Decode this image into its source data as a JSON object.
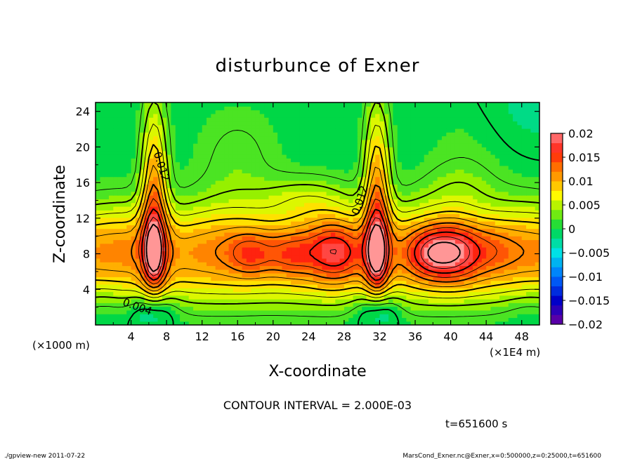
{
  "chart_data": {
    "type": "heatmap",
    "title": "disturbunce of Exner",
    "xlabel": "X-coordinate",
    "ylabel": "Z-coordinate",
    "x_unit_note": "(×1E4 m)",
    "y_unit_note": "(×1000 m)",
    "xlim": [
      0,
      50
    ],
    "ylim": [
      0,
      25
    ],
    "x_ticks": [
      4,
      8,
      12,
      16,
      20,
      24,
      28,
      32,
      36,
      40,
      44,
      48
    ],
    "y_ticks": [
      4,
      8,
      12,
      16,
      20,
      24
    ],
    "colorbar": {
      "min": -0.02,
      "max": 0.02,
      "ticks": [
        {
          "value": 0.02,
          "label": "0.02"
        },
        {
          "value": 0.015,
          "label": "0.015"
        },
        {
          "value": 0.01,
          "label": "0.01"
        },
        {
          "value": 0.005,
          "label": "0.005"
        },
        {
          "value": 0,
          "label": "0"
        },
        {
          "value": -0.005,
          "label": "−0.005"
        },
        {
          "value": -0.01,
          "label": "−0.01"
        },
        {
          "value": -0.015,
          "label": "−0.015"
        },
        {
          "value": -0.02,
          "label": "−0.02"
        }
      ]
    },
    "contour_labels": [
      {
        "text": "0.012",
        "x": 7.4,
        "z": 17.8,
        "angle": 72
      },
      {
        "text": "0.012",
        "x": 29.8,
        "z": 14.0,
        "angle": -72
      },
      {
        "text": "0.004",
        "x": 4.7,
        "z": 2.0,
        "angle": 20
      }
    ],
    "contour_interval_text": "CONTOUR INTERVAL = 2.000E-03",
    "time_text": "t=651600 s"
  },
  "footer": {
    "left": "./gpview-new   2011-07-22",
    "right": "MarsCond_Exner.nc@Exner,x=0:500000,z=0:25000,t=651600"
  }
}
